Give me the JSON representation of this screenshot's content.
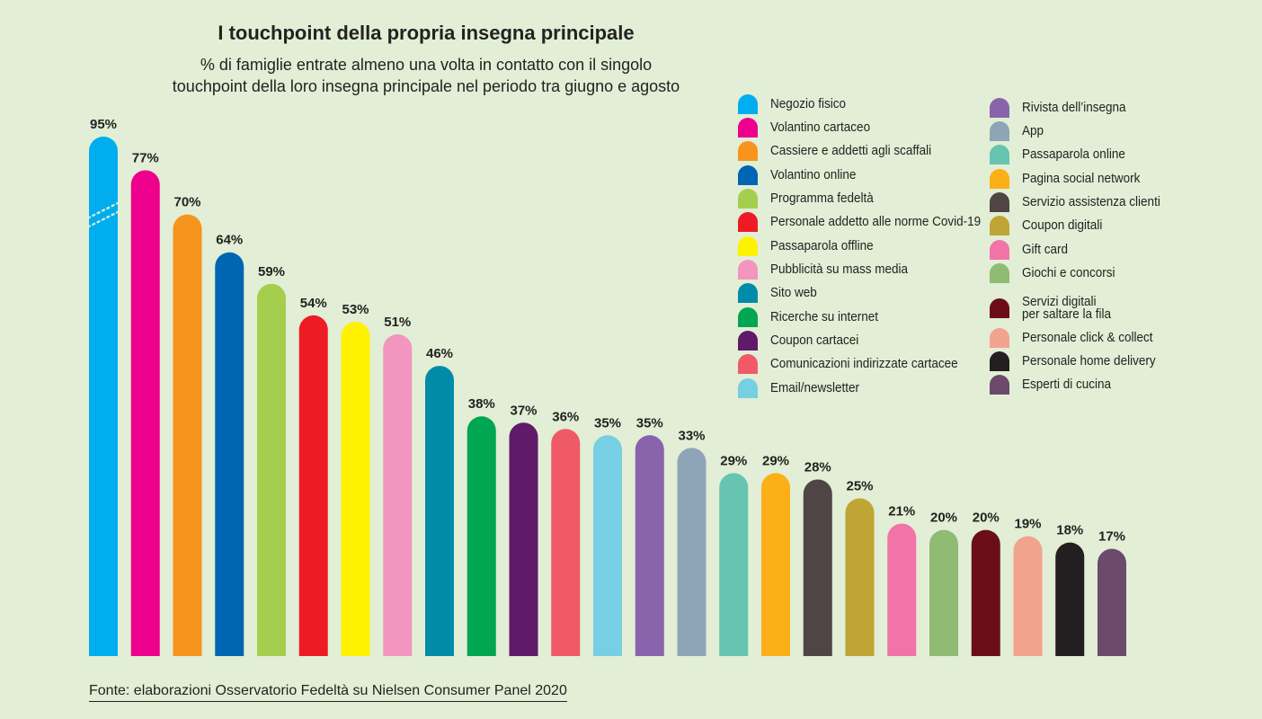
{
  "chart_data": {
    "type": "bar",
    "title": "I touchpoint della propria insegna principale",
    "subtitle": [
      "% di famiglie entrate almeno una volta in contatto con il singolo",
      "touchpoint della loro insegna principale nel periodo tra giugno e agosto"
    ],
    "categories": [
      "Negozio fisico",
      "Volantino cartaceo",
      "Cassiere e addetti agli scaffali",
      "Volantino online",
      "Programma fedeltà",
      "Personale addetto alle norme Covid-19",
      "Passaparola offline",
      "Pubblicità su mass media",
      "Sito web",
      "Ricerche su internet",
      "Coupon cartacei",
      "Comunicazioni indirizzate cartacee",
      "Email/newsletter",
      "Rivista dell’insegna",
      "App",
      "Passaparola online",
      "Pagina social network",
      "Servizio assistenza clienti",
      "Coupon digitali",
      "Gift card",
      "Giochi e concorsi",
      "Servizi digitali per saltare la fila",
      "Personale click & collect",
      "Personale home delivery",
      "Esperti di cucina"
    ],
    "values": [
      95,
      77,
      70,
      64,
      59,
      54,
      53,
      51,
      46,
      38,
      37,
      36,
      35,
      35,
      33,
      29,
      29,
      28,
      25,
      21,
      20,
      20,
      19,
      18,
      17
    ],
    "value_labels": [
      "95%",
      "77%",
      "70%",
      "64%",
      "59%",
      "54%",
      "53%",
      "51%",
      "46%",
      "38%",
      "37%",
      "36%",
      "35%",
      "35%",
      "33%",
      "29%",
      "29%",
      "28%",
      "25%",
      "21%",
      "20%",
      "20%",
      "19%",
      "18%",
      "17%"
    ],
    "colors": [
      "#00aeef",
      "#ec008c",
      "#f7941d",
      "#0066b3",
      "#a6ce4e",
      "#ed1c24",
      "#fff200",
      "#f295bf",
      "#008ca8",
      "#00a651",
      "#5f1a6a",
      "#f05a67",
      "#76cfe2",
      "#8a63ad",
      "#8ea5b8",
      "#66c4b0",
      "#fcaf17",
      "#4f4544",
      "#bfa535",
      "#f173a8",
      "#8fbb73",
      "#6b0e18",
      "#f2a38e",
      "#231f20",
      "#6b4a6b"
    ],
    "axis_break_on_first_bar": true,
    "legend": {
      "left": [
        {
          "label": "Negozio fisico",
          "color": "#00aeef"
        },
        {
          "label": "Volantino cartaceo",
          "color": "#ec008c"
        },
        {
          "label": "Cassiere e addetti agli scaffali",
          "color": "#f7941d"
        },
        {
          "label": "Volantino online",
          "color": "#0066b3"
        },
        {
          "label": "Programma fedeltà",
          "color": "#a6ce4e"
        },
        {
          "label": "Personale addetto alle norme Covid-19",
          "color": "#ed1c24"
        },
        {
          "label": "Passaparola offline",
          "color": "#fff200"
        },
        {
          "label": "Pubblicità su mass media",
          "color": "#f295bf"
        },
        {
          "label": "Sito web",
          "color": "#008ca8"
        },
        {
          "label": "Ricerche su internet",
          "color": "#00a651"
        },
        {
          "label": "Coupon cartacei",
          "color": "#5f1a6a"
        },
        {
          "label": "Comunicazioni indirizzate cartacee",
          "color": "#f05a67"
        },
        {
          "label": "Email/newsletter",
          "color": "#76cfe2"
        }
      ],
      "right": [
        {
          "label": "Rivista dell’insegna",
          "color": "#8a63ad"
        },
        {
          "label": "App",
          "color": "#8ea5b8"
        },
        {
          "label": "Passaparola online",
          "color": "#66c4b0"
        },
        {
          "label": "Pagina social network",
          "color": "#fcaf17"
        },
        {
          "label": "Servizio assistenza clienti",
          "color": "#4f4544"
        },
        {
          "label": "Coupon digitali",
          "color": "#bfa535"
        },
        {
          "label": "Gift card",
          "color": "#f173a8"
        },
        {
          "label": "Giochi e concorsi",
          "color": "#8fbb73"
        },
        {
          "label": [
            "Servizi digitali",
            "per saltare la fila"
          ],
          "color": "#6b0e18"
        },
        {
          "label": "Personale click & collect",
          "color": "#f2a38e"
        },
        {
          "label": "Personale home delivery",
          "color": "#231f20"
        },
        {
          "label": "Esperti di cucina",
          "color": "#6b4a6b"
        }
      ]
    },
    "source": "Fonte: elaborazioni Osservatorio Fedeltà su Nielsen Consumer Panel 2020"
  }
}
